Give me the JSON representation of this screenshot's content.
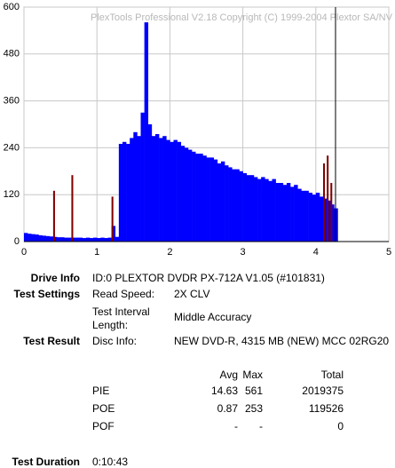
{
  "chart_data": {
    "type": "bar",
    "title": "PlexTools Professional V2.18 Copyright (C) 1999-2004 Plextor SA/NV",
    "x": [
      0,
      0.05,
      0.1,
      0.15,
      0.2,
      0.25,
      0.3,
      0.35,
      0.4,
      0.45,
      0.5,
      0.55,
      0.6,
      0.65,
      0.7,
      0.75,
      0.8,
      0.85,
      0.9,
      0.95,
      1,
      1.05,
      1.1,
      1.15,
      1.2,
      1.25,
      1.3,
      1.35,
      1.4,
      1.45,
      1.5,
      1.55,
      1.6,
      1.65,
      1.7,
      1.75,
      1.8,
      1.85,
      1.9,
      1.95,
      2,
      2.05,
      2.1,
      2.15,
      2.2,
      2.25,
      2.3,
      2.35,
      2.4,
      2.45,
      2.5,
      2.55,
      2.6,
      2.65,
      2.7,
      2.75,
      2.8,
      2.85,
      2.9,
      2.95,
      3,
      3.05,
      3.1,
      3.15,
      3.2,
      3.25,
      3.3,
      3.35,
      3.4,
      3.45,
      3.5,
      3.55,
      3.6,
      3.65,
      3.7,
      3.75,
      3.8,
      3.85,
      3.9,
      3.95,
      4,
      4.05,
      4.1,
      4.15,
      4.2,
      4.25
    ],
    "bar_width": 0.05,
    "series": [
      {
        "color": "#0000ff",
        "values": [
          22,
          20,
          19,
          18,
          16,
          15,
          14,
          13,
          12,
          11,
          11,
          10,
          10,
          10,
          10,
          10,
          9,
          10,
          9,
          10,
          9,
          10,
          9,
          10,
          40,
          12,
          250,
          255,
          250,
          265,
          280,
          270,
          330,
          561,
          300,
          270,
          275,
          265,
          270,
          260,
          255,
          260,
          255,
          245,
          240,
          235,
          230,
          225,
          225,
          220,
          215,
          215,
          210,
          200,
          205,
          195,
          190,
          185,
          185,
          180,
          175,
          170,
          170,
          165,
          160,
          165,
          160,
          155,
          160,
          150,
          150,
          145,
          150,
          140,
          145,
          135,
          130,
          130,
          125,
          120,
          125,
          115,
          110,
          105,
          95,
          85
        ]
      },
      {
        "color": "#800000",
        "values": [
          null,
          null,
          null,
          null,
          null,
          null,
          null,
          null,
          130,
          null,
          null,
          null,
          null,
          170,
          null,
          null,
          null,
          null,
          null,
          null,
          null,
          null,
          null,
          null,
          115,
          null,
          null,
          null,
          null,
          null,
          null,
          null,
          null,
          null,
          null,
          null,
          null,
          null,
          null,
          null,
          null,
          null,
          null,
          null,
          null,
          null,
          null,
          null,
          null,
          null,
          null,
          null,
          null,
          null,
          null,
          null,
          null,
          null,
          null,
          null,
          null,
          null,
          null,
          null,
          null,
          null,
          null,
          null,
          null,
          null,
          null,
          null,
          null,
          null,
          null,
          null,
          null,
          null,
          null,
          null,
          null,
          null,
          200,
          220,
          150,
          null
        ]
      }
    ],
    "scan_end": 4.27,
    "xlim": [
      0,
      5
    ],
    "xticks": [
      0,
      1,
      2,
      3,
      4,
      5
    ],
    "ylim": [
      0,
      600
    ],
    "yticks": [
      0,
      120,
      240,
      360,
      480,
      600
    ],
    "grid": true
  },
  "info": {
    "drive": {
      "label": "Drive Info",
      "value": "ID:0 PLEXTOR DVDR PX-712A V1.05 (#101831)"
    },
    "settings": {
      "label": "Test Settings",
      "rows": [
        [
          "Read Speed:",
          "2X CLV"
        ],
        [
          "Test Interval Length:",
          "Middle Accuracy"
        ]
      ]
    },
    "result": {
      "label": "Test Result",
      "key": "Disc Info:",
      "value": "NEW DVD-R, 4315 MB (NEW) MCC 02RG20"
    },
    "stats": {
      "columns": [
        "Avg",
        "Max",
        "Total"
      ],
      "rows": [
        {
          "name": "PIE",
          "values": [
            14.63,
            561,
            2019375
          ]
        },
        {
          "name": "POE",
          "values": [
            0.87,
            253,
            119526
          ]
        },
        {
          "name": "POF",
          "values": [
            "-",
            "-",
            0
          ]
        }
      ]
    },
    "duration": {
      "label": "Test Duration",
      "value": "0:10:43"
    }
  }
}
